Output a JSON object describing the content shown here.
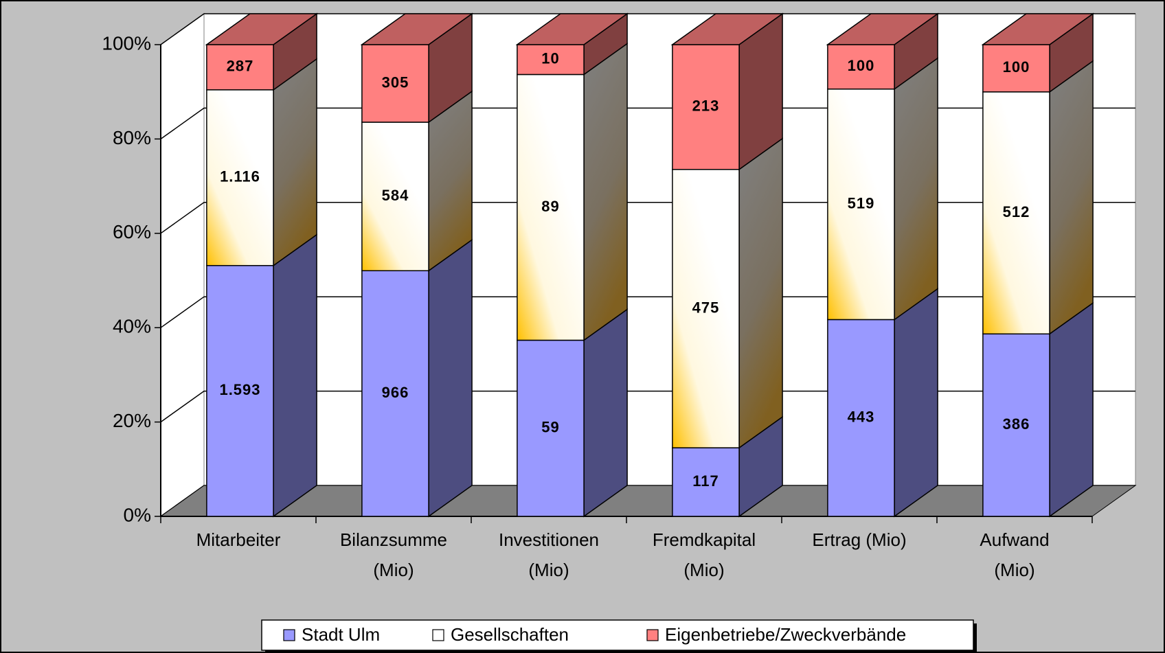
{
  "chart_data": {
    "type": "bar",
    "stacking": "percent",
    "categories": [
      "Mitarbeiter",
      "Bilanzsumme\n(Mio)",
      "Investitionen\n(Mio)",
      "Fremdkapital\n(Mio)",
      "Ertrag  (Mio)",
      "Aufwand\n(Mio)"
    ],
    "series": [
      {
        "name": "Stadt Ulm",
        "color": "#9999ff",
        "values": [
          1593,
          966,
          59,
          117,
          443,
          386
        ],
        "value_labels": [
          "1.593",
          "966",
          "59",
          "117",
          "443",
          "386"
        ]
      },
      {
        "name": "Gesellschaften",
        "color": "#ffffff",
        "values": [
          1116,
          584,
          89,
          475,
          519,
          512
        ],
        "value_labels": [
          "1.116",
          "584",
          "89",
          "475",
          "519",
          "512"
        ]
      },
      {
        "name": "Eigenbetriebe/Zweckverbände",
        "color": "#ff8080",
        "values": [
          287,
          305,
          10,
          213,
          100,
          100
        ],
        "value_labels": [
          "287",
          "305",
          "10",
          "213",
          "100",
          "100"
        ]
      }
    ],
    "ylim": [
      0,
      100
    ],
    "yticks": [
      {
        "value": 0,
        "label": "0%"
      },
      {
        "value": 20,
        "label": "20%"
      },
      {
        "value": 40,
        "label": "40%"
      },
      {
        "value": 60,
        "label": "60%"
      },
      {
        "value": 80,
        "label": "80%"
      },
      {
        "value": 100,
        "label": "100%"
      }
    ],
    "grid": true,
    "legend": "bottom"
  }
}
